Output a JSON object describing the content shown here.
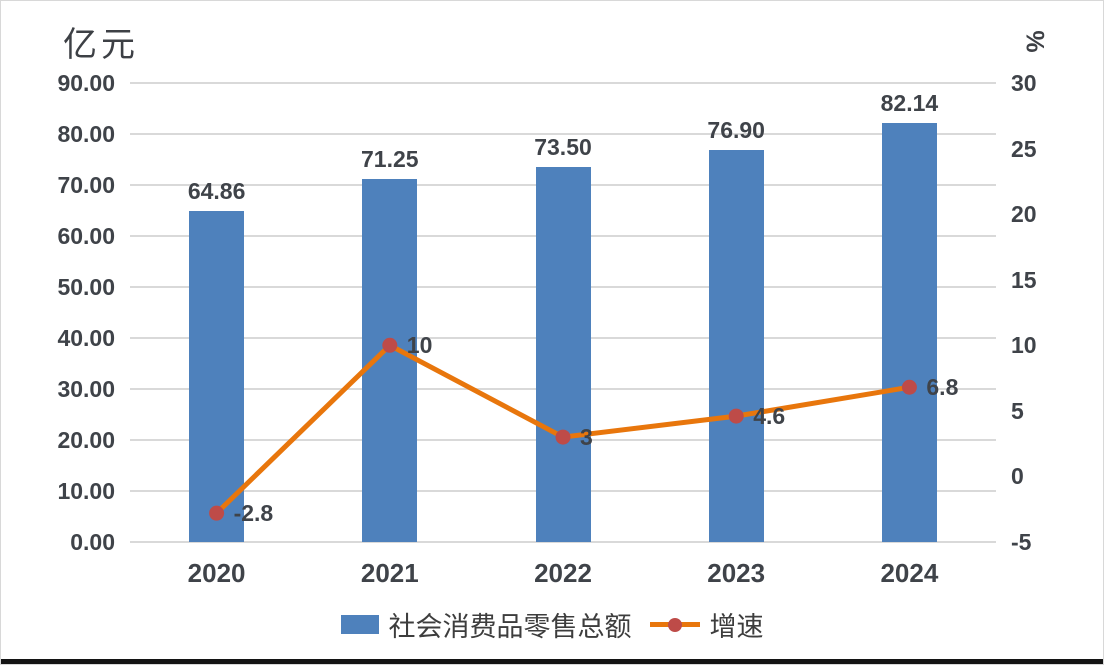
{
  "window": {
    "bottom_edge_color": "#141414"
  },
  "chart_data": {
    "type": "combo",
    "title": "",
    "categories": [
      "2020",
      "2021",
      "2022",
      "2023",
      "2024"
    ],
    "series": [
      {
        "name": "社会消费品零售总额",
        "type": "bar",
        "axis": "left",
        "color": "#4E81BC",
        "values": [
          64.86,
          71.25,
          73.5,
          76.9,
          82.14
        ],
        "labels": [
          "64.86",
          "71.25",
          "73.50",
          "76.90",
          "82.14"
        ]
      },
      {
        "name": "增速",
        "type": "line",
        "axis": "right",
        "color": "#E8760C",
        "marker_color": "#BE4B48",
        "values": [
          -2.8,
          10,
          3,
          4.6,
          6.8
        ],
        "labels": [
          "-2.8",
          "10",
          "3",
          "4.6",
          "6.8"
        ]
      }
    ],
    "left_axis": {
      "title": "亿元",
      "min": 0,
      "max": 90,
      "tick_labels": [
        "90.00",
        "80.00",
        "70.00",
        "60.00",
        "50.00",
        "40.00",
        "30.00",
        "20.00",
        "10.00",
        "0.00"
      ]
    },
    "right_axis": {
      "title": "%",
      "min": -5,
      "max": 30,
      "tick_labels": [
        "30",
        "25",
        "20",
        "15",
        "10",
        "5",
        "0",
        "-5"
      ]
    },
    "legend": {
      "position": "bottom",
      "entries": [
        "社会消费品零售总额",
        "增速"
      ]
    },
    "grid": {
      "horizontal": true,
      "color": "#D9D9D9"
    },
    "text_color": "#3F4349"
  }
}
